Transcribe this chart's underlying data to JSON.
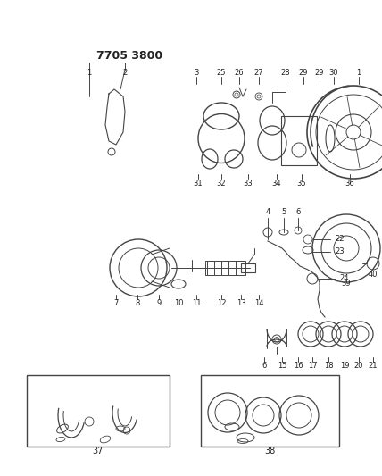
{
  "bg_color": "#ffffff",
  "line_color": "#444444",
  "text_color": "#222222",
  "fig_width": 4.28,
  "fig_height": 5.33,
  "dpi": 100,
  "part_number": "7705 3800"
}
